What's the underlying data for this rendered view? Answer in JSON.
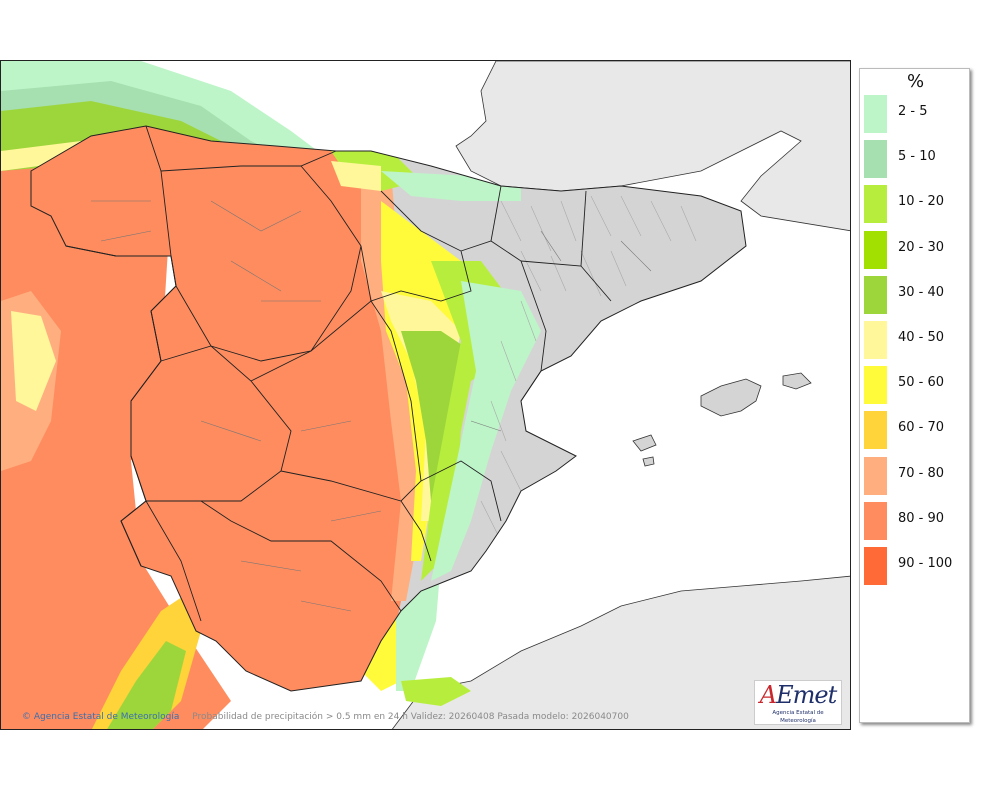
{
  "legend": {
    "title": "%",
    "items": [
      {
        "label": "2 - 5",
        "color": "#bdf5c8"
      },
      {
        "label": "5 - 10",
        "color": "#a6dfb0"
      },
      {
        "label": "10 - 20",
        "color": "#b7ee3e"
      },
      {
        "label": "20 - 30",
        "color": "#a1e000"
      },
      {
        "label": "30 - 40",
        "color": "#9dd63b"
      },
      {
        "label": "40 - 50",
        "color": "#fff79a"
      },
      {
        "label": "50 - 60",
        "color": "#fffb3a"
      },
      {
        "label": "60 - 70",
        "color": "#ffd33a"
      },
      {
        "label": "70 - 80",
        "color": "#ffaf7f"
      },
      {
        "label": "80 - 90",
        "color": "#ff8c5f"
      },
      {
        "label": "90 - 100",
        "color": "#ff6a36"
      }
    ]
  },
  "credits": {
    "agency": "Agencia Estatal de Meteorología",
    "description": "Probabilidad de precipitación > 0.5 mm en 24 h Validez: 20260408 Pasada modelo: 2026040700"
  },
  "logo": {
    "name": "AEMet",
    "subtitle": "Agencia Estatal de Meteorología"
  },
  "colors": {
    "sea": "#ffffff",
    "land_outside": "#e8e8e8",
    "relief": "#cfcfcf",
    "border": "#222222",
    "regions": "#777777"
  }
}
